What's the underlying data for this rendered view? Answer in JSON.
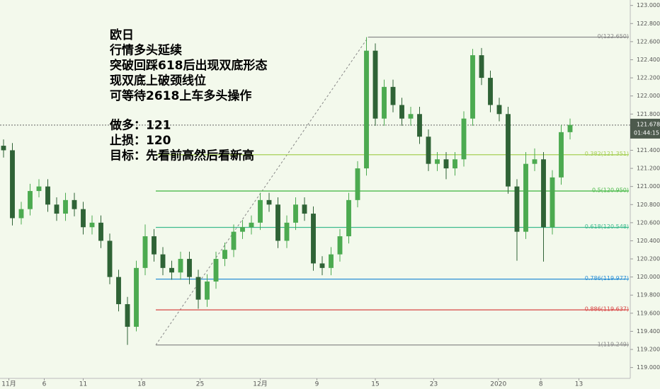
{
  "chart_data": {
    "type": "candlestick",
    "annotations": [
      "欧日",
      "行情多头延续",
      "突破回踩618后出现双底形态",
      "现双底上破颈线位",
      "可等待2618上车多头操作",
      "做多：121",
      "止损：120",
      "目标：先看前高然后看新高"
    ],
    "up_color": "#4caa50",
    "down_color": "#2f6336",
    "open": [
      121.45,
      121.4,
      120.65,
      120.75,
      120.95,
      121.0,
      120.8,
      120.7,
      120.85,
      120.75,
      120.55,
      120.6,
      120.4,
      120.0,
      119.7,
      119.45,
      120.1,
      120.45,
      120.25,
      120.1,
      120.05,
      120.2,
      120.0,
      119.75,
      119.95,
      120.2,
      120.3,
      120.5,
      120.55,
      120.6,
      120.85,
      120.8,
      120.4,
      120.6,
      120.8,
      120.7,
      120.15,
      120.1,
      120.25,
      120.45,
      120.85,
      121.2,
      122.5,
      121.75,
      122.1,
      121.9,
      121.75,
      121.8,
      121.55,
      121.25,
      121.3,
      121.2,
      121.3,
      121.75,
      122.45,
      122.2,
      121.9,
      121.8,
      121.0,
      120.5,
      121.25,
      121.3,
      120.55,
      121.1,
      121.6
    ],
    "high": [
      121.52,
      121.48,
      120.83,
      121.03,
      121.08,
      121.08,
      120.88,
      120.93,
      120.93,
      120.83,
      120.68,
      120.68,
      120.48,
      120.08,
      119.78,
      120.18,
      120.58,
      120.53,
      120.33,
      120.18,
      120.28,
      120.28,
      120.08,
      120.03,
      120.28,
      120.38,
      120.58,
      120.63,
      120.68,
      120.93,
      120.93,
      120.88,
      120.68,
      120.88,
      120.88,
      120.78,
      120.23,
      120.33,
      120.53,
      120.93,
      121.28,
      122.65,
      122.58,
      122.18,
      122.18,
      121.98,
      121.88,
      121.88,
      121.63,
      121.38,
      121.38,
      121.38,
      121.83,
      122.52,
      122.53,
      122.28,
      121.98,
      121.88,
      121.08,
      121.38,
      121.42,
      121.38,
      121.18,
      121.68,
      121.75
    ],
    "low": [
      121.32,
      120.57,
      120.58,
      120.68,
      120.88,
      120.72,
      120.62,
      120.62,
      120.67,
      120.47,
      120.47,
      120.32,
      119.92,
      119.62,
      119.25,
      119.4,
      120.02,
      120.17,
      120.02,
      119.97,
      119.97,
      119.92,
      119.65,
      119.67,
      119.87,
      120.12,
      120.22,
      120.42,
      120.47,
      120.52,
      120.72,
      120.32,
      120.32,
      120.52,
      120.62,
      120.07,
      120.02,
      120.02,
      120.17,
      120.37,
      120.77,
      121.12,
      121.67,
      121.67,
      121.82,
      121.67,
      121.67,
      121.47,
      121.17,
      121.17,
      121.08,
      121.12,
      121.22,
      121.67,
      122.12,
      121.82,
      121.72,
      120.92,
      120.18,
      120.42,
      121.17,
      120.17,
      120.47,
      121.02,
      121.52
    ],
    "close": [
      121.4,
      120.65,
      120.75,
      120.95,
      121.0,
      120.8,
      120.7,
      120.85,
      120.75,
      120.55,
      120.6,
      120.4,
      120.0,
      119.7,
      119.45,
      120.1,
      120.45,
      120.25,
      120.1,
      120.05,
      120.2,
      120.0,
      119.75,
      119.95,
      120.2,
      120.3,
      120.5,
      120.55,
      120.6,
      120.85,
      120.8,
      120.4,
      120.6,
      120.8,
      120.7,
      120.15,
      120.1,
      120.25,
      120.45,
      120.85,
      121.2,
      122.5,
      121.75,
      122.1,
      121.9,
      121.75,
      121.8,
      121.55,
      121.25,
      121.3,
      121.2,
      121.3,
      121.75,
      122.45,
      122.2,
      121.9,
      121.8,
      121.0,
      120.5,
      121.25,
      121.3,
      120.55,
      121.1,
      121.6,
      121.68
    ],
    "xlim": [
      -0.4,
      70.8
    ],
    "xticks": [
      {
        "value": 0.6,
        "label": "11月"
      },
      {
        "value": 4.6,
        "label": "6"
      },
      {
        "value": 9,
        "label": "11"
      },
      {
        "value": 15.6,
        "label": "18"
      },
      {
        "value": 22.2,
        "label": "25"
      },
      {
        "value": 29,
        "label": "12月"
      },
      {
        "value": 35.4,
        "label": "9"
      },
      {
        "value": 42,
        "label": "15"
      },
      {
        "value": 48.6,
        "label": "23"
      },
      {
        "value": 55.9,
        "label": "2020"
      },
      {
        "value": 60.7,
        "label": "8"
      },
      {
        "value": 65,
        "label": "13"
      }
    ],
    "ylim": [
      118.88,
      123.06
    ],
    "yticks": [
      {
        "value": 119,
        "label": "119.000"
      },
      {
        "value": 119.2,
        "label": "119.200"
      },
      {
        "value": 119.4,
        "label": "119.400"
      },
      {
        "value": 119.6,
        "label": "119.600"
      },
      {
        "value": 119.8,
        "label": "119.800"
      },
      {
        "value": 120,
        "label": "120.000"
      },
      {
        "value": 120.2,
        "label": "120.200"
      },
      {
        "value": 120.4,
        "label": "120.400"
      },
      {
        "value": 120.6,
        "label": "120.600"
      },
      {
        "value": 120.8,
        "label": "120.800"
      },
      {
        "value": 121,
        "label": "121.000"
      },
      {
        "value": 121.2,
        "label": "121.200"
      },
      {
        "value": 121.4,
        "label": "121.400"
      },
      {
        "value": 121.6,
        "label": "121.600"
      },
      {
        "value": 121.8,
        "label": "121.800"
      },
      {
        "value": 122,
        "label": "122.000"
      },
      {
        "value": 122.2,
        "label": "122.200"
      },
      {
        "value": 122.4,
        "label": "122.400"
      },
      {
        "value": 122.6,
        "label": "122.600"
      },
      {
        "value": 122.8,
        "label": "122.800"
      },
      {
        "value": 123,
        "label": "123.000"
      }
    ],
    "fib_levels": [
      {
        "price": 122.65,
        "label": "0(122.650)",
        "color": "#8a8a8a"
      },
      {
        "price": 121.351,
        "label": "0.382(121.351)",
        "color": "#a6cf55"
      },
      {
        "price": 120.95,
        "label": "0.5(120.950)",
        "color": "#4cbb4c"
      },
      {
        "price": 120.548,
        "label": "0.618(120.548)",
        "color": "#3dbb8f"
      },
      {
        "price": 119.977,
        "label": "0.786(119.977)",
        "color": "#2b8fd6"
      },
      {
        "price": 119.637,
        "label": "0.886(119.637)",
        "color": "#d84545"
      },
      {
        "price": 119.249,
        "label": "1(119.249)",
        "color": "#8a8a8a"
      }
    ],
    "current_price": {
      "value": 121.678,
      "label": "121.678",
      "countdown": "01:44:15"
    }
  }
}
